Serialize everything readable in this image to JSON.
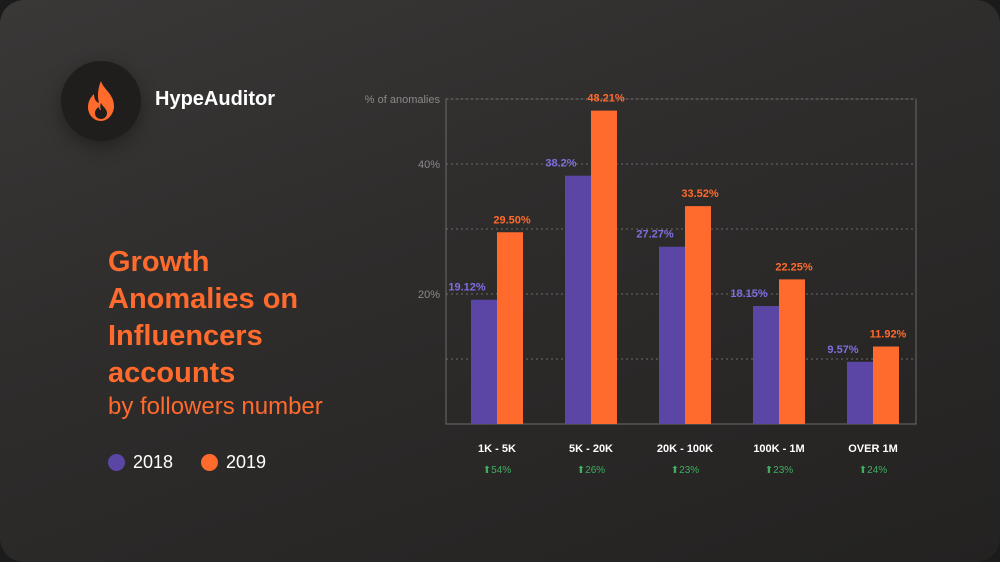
{
  "brand": {
    "name": "HypeAuditor",
    "icon": "flame-icon",
    "accent": "#ff6a2d"
  },
  "title": {
    "lines": [
      "Growth",
      "Anomalies on",
      "Influencers",
      "accounts"
    ],
    "subtitle": "by followers number"
  },
  "legend": [
    {
      "label": "2018",
      "color": "#5b46a6"
    },
    {
      "label": "2019",
      "color": "#ff6a2d"
    }
  ],
  "chart_data": {
    "type": "bar",
    "title": "",
    "ylabel": "% of anomalies",
    "ylim": [
      0,
      50
    ],
    "yticks": [
      {
        "value": 20,
        "label": "20%"
      },
      {
        "value": 40,
        "label": "40%"
      }
    ],
    "grid": true,
    "categories": [
      "1K - 5K",
      "5K - 20K",
      "20K - 100K",
      "100K - 1M",
      "OVER 1M"
    ],
    "series": [
      {
        "name": "2018",
        "color": "#5b46a6",
        "label_color": "#7f6ee0",
        "values": [
          19.12,
          38.2,
          27.27,
          18.15,
          9.57
        ],
        "labels": [
          "19.12%",
          "38.2%",
          "27.27%",
          "18.15%",
          "9.57%"
        ]
      },
      {
        "name": "2019",
        "color": "#ff6a2d",
        "label_color": "#ff6a2d",
        "values": [
          29.5,
          48.21,
          33.52,
          22.25,
          11.92
        ],
        "labels": [
          "29.50%",
          "48.21%",
          "33.52%",
          "22.25%",
          "11.92%"
        ]
      }
    ],
    "growth": [
      "54%",
      "26%",
      "23%",
      "23%",
      "24%"
    ],
    "growth_color": "#3fae61"
  }
}
